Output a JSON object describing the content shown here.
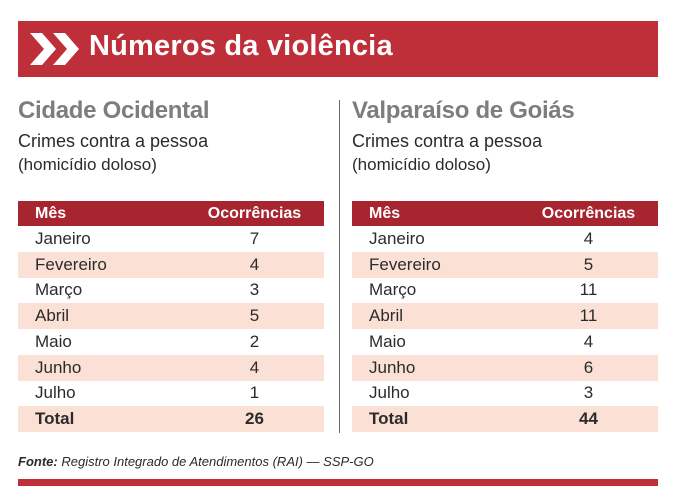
{
  "header": {
    "title": "Números da violência",
    "icon": "double-chevron-right-icon",
    "color": "#be2f3a"
  },
  "panels": [
    {
      "city": "Cidade Ocidental",
      "subtitle": "Crimes contra a pessoa",
      "note": "(homicídio doloso)",
      "columns": [
        "Mês",
        "Ocorrências"
      ],
      "rows": [
        {
          "month": "Janeiro",
          "count": "7"
        },
        {
          "month": "Fevereiro",
          "count": "4"
        },
        {
          "month": "Março",
          "count": "3"
        },
        {
          "month": "Abril",
          "count": "5"
        },
        {
          "month": "Maio",
          "count": "2"
        },
        {
          "month": "Junho",
          "count": "4"
        },
        {
          "month": "Julho",
          "count": "1"
        }
      ],
      "total": {
        "label": "Total",
        "count": "26"
      }
    },
    {
      "city": "Valparaíso de Goiás",
      "subtitle": "Crimes contra a pessoa",
      "note": "(homicídio doloso)",
      "columns": [
        "Mês",
        "Ocorrências"
      ],
      "rows": [
        {
          "month": "Janeiro",
          "count": "4"
        },
        {
          "month": "Fevereiro",
          "count": "5"
        },
        {
          "month": "Março",
          "count": "11"
        },
        {
          "month": "Abril",
          "count": "11"
        },
        {
          "month": "Maio",
          "count": "4"
        },
        {
          "month": "Junho",
          "count": "6"
        },
        {
          "month": "Julho",
          "count": "3"
        }
      ],
      "total": {
        "label": "Total",
        "count": "44"
      }
    }
  ],
  "source": {
    "label": "Fonte:",
    "text": "Registro Integrado de Atendimentos (RAI) — SSP-GO"
  },
  "colors": {
    "table_header": "#a7252e",
    "row_shade": "#fbe0d6",
    "city_title": "#7d7d7d"
  }
}
